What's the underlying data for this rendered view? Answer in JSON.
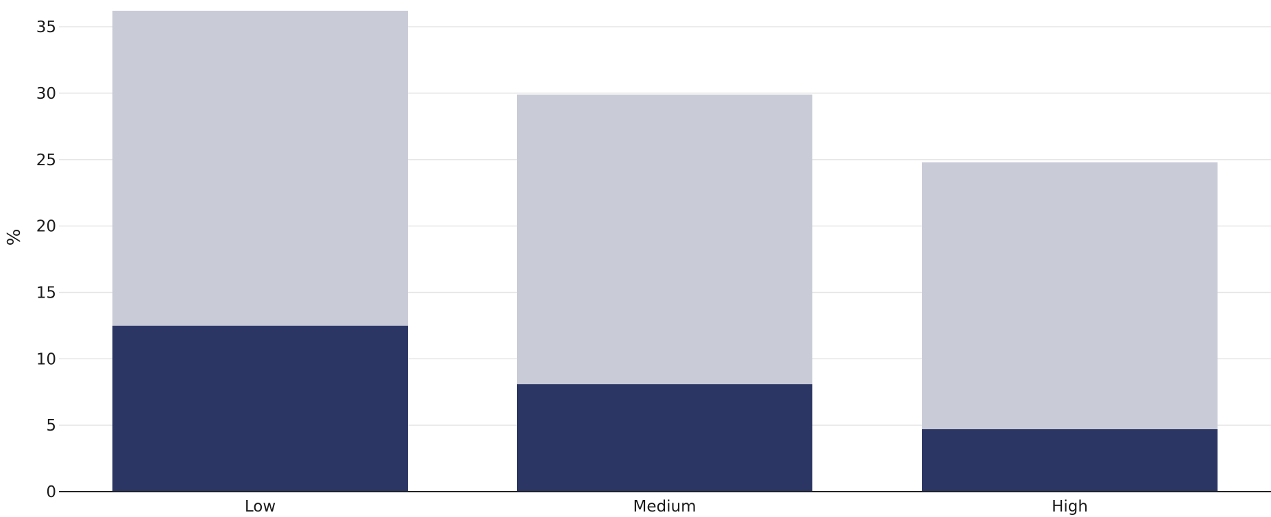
{
  "chart_data": {
    "type": "bar",
    "stacked": true,
    "categories": [
      "Low",
      "Medium",
      "High"
    ],
    "series": [
      {
        "values": [
          12.5,
          8.1,
          4.7
        ],
        "color": "#2b3664"
      },
      {
        "values": [
          23.7,
          21.8,
          20.1
        ],
        "color": "#c9cbd7"
      }
    ],
    "totals": [
      36.2,
      29.9,
      24.8
    ],
    "ylabel": "%",
    "xlabel": "",
    "ylim": [
      0,
      36.5
    ],
    "yticks": [
      0,
      5,
      10,
      15,
      20,
      25,
      30,
      35
    ],
    "grid": true,
    "legend": "none"
  }
}
